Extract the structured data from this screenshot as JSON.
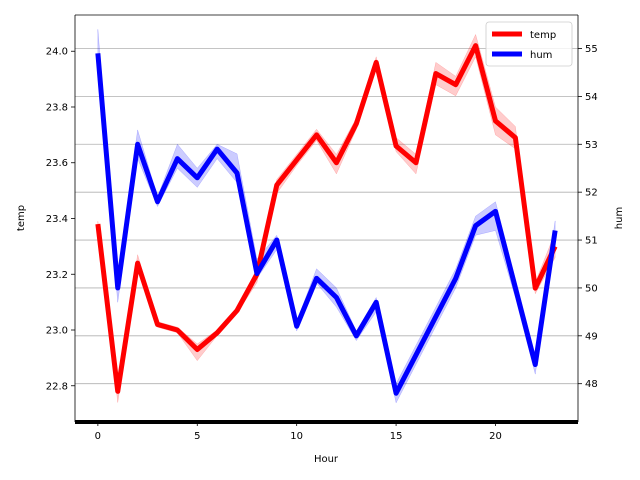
{
  "chart_data": {
    "type": "line",
    "xlabel": "Hour",
    "ylabel_left": "temp",
    "ylabel_right": "hum",
    "x": [
      0,
      1,
      2,
      3,
      4,
      5,
      6,
      7,
      8,
      9,
      10,
      11,
      12,
      13,
      14,
      15,
      16,
      17,
      18,
      19,
      20,
      21,
      22,
      23
    ],
    "xlim": [
      -1.15,
      24.15
    ],
    "xticks": [
      0,
      5,
      10,
      15,
      20
    ],
    "ylim_left": [
      22.67,
      24.13
    ],
    "yticks_left": [
      22.8,
      23.0,
      23.2,
      23.4,
      23.6,
      23.8,
      24.0
    ],
    "ylim_right": [
      47.2,
      55.7
    ],
    "yticks_right": [
      48,
      49,
      50,
      51,
      52,
      53,
      54,
      55
    ],
    "grid": "horizontal lines at right-axis ticks",
    "legend_position": "top-right",
    "series": [
      {
        "name": "temp",
        "axis": "left",
        "color": "#ff0000",
        "values": [
          23.38,
          22.78,
          23.24,
          23.02,
          23.0,
          22.93,
          22.99,
          23.07,
          23.2,
          23.52,
          23.61,
          23.7,
          23.6,
          23.74,
          23.96,
          23.66,
          23.6,
          23.92,
          23.88,
          24.02,
          23.75,
          23.69,
          23.15,
          23.3
        ],
        "lower": [
          23.37,
          22.74,
          23.22,
          23.01,
          22.99,
          22.89,
          22.98,
          23.06,
          23.17,
          23.49,
          23.59,
          23.68,
          23.56,
          23.72,
          23.94,
          23.64,
          23.56,
          23.88,
          23.84,
          23.98,
          23.7,
          23.65,
          23.13,
          23.26
        ],
        "upper": [
          23.39,
          22.82,
          23.27,
          23.03,
          23.01,
          22.95,
          23.0,
          23.08,
          23.22,
          23.54,
          23.63,
          23.72,
          23.63,
          23.76,
          23.98,
          23.69,
          23.63,
          23.96,
          23.91,
          24.06,
          23.8,
          23.73,
          23.17,
          23.35
        ]
      },
      {
        "name": "hum",
        "axis": "right",
        "color": "#0000ff",
        "values": [
          54.9,
          50.0,
          53.0,
          51.8,
          52.7,
          52.3,
          52.9,
          52.4,
          50.3,
          51.0,
          49.2,
          50.2,
          49.8,
          49.0,
          49.7,
          47.8,
          48.6,
          49.4,
          50.2,
          51.3,
          51.6,
          50.0,
          48.4,
          51.2
        ],
        "lower": [
          54.4,
          49.7,
          52.7,
          51.7,
          52.5,
          52.1,
          52.7,
          52.2,
          50.2,
          50.8,
          49.1,
          50.1,
          49.6,
          48.9,
          49.5,
          47.6,
          48.4,
          49.2,
          50.0,
          51.1,
          51.2,
          49.8,
          48.2,
          50.9
        ],
        "upper": [
          55.4,
          50.3,
          53.3,
          51.9,
          53.0,
          52.5,
          53.0,
          52.8,
          50.6,
          51.1,
          49.3,
          50.4,
          50.0,
          49.1,
          49.8,
          48.0,
          48.8,
          49.6,
          50.4,
          51.5,
          51.8,
          50.2,
          48.6,
          51.4
        ]
      }
    ]
  }
}
